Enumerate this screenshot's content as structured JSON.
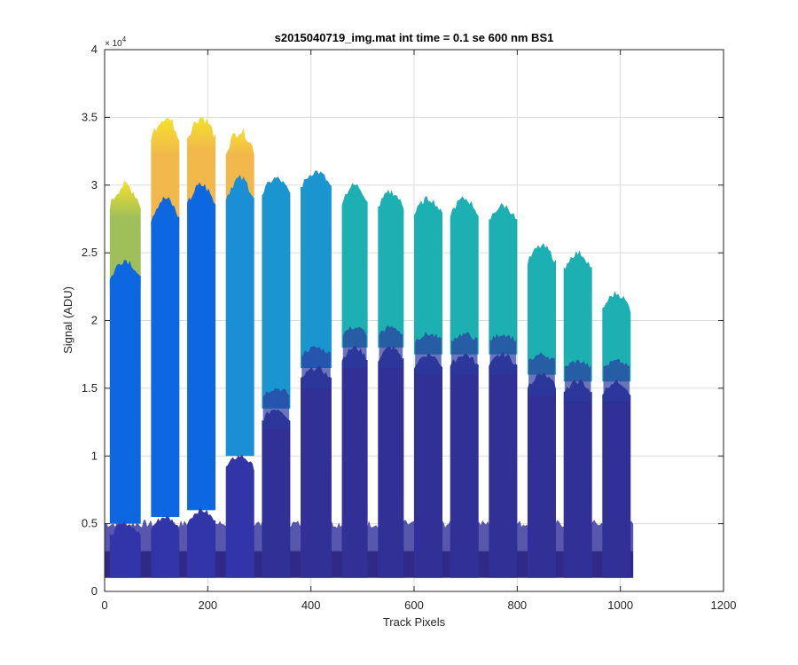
{
  "chart_data": {
    "type": "area",
    "title": "s2015040719_img.mat int time = 0.1 se  600 nm BS1",
    "xlabel": "Track Pixels",
    "ylabel": "Signal (ADU)",
    "xlim": [
      0,
      1200
    ],
    "ylim": [
      0,
      40000
    ],
    "x_ticks": [
      0,
      200,
      400,
      600,
      800,
      1000,
      1200
    ],
    "x_tick_labels": [
      "0",
      "200",
      "400",
      "600",
      "800",
      "1000",
      "1200"
    ],
    "y_ticks": [
      0,
      5000,
      10000,
      15000,
      20000,
      25000,
      30000,
      35000,
      40000
    ],
    "y_tick_labels": [
      "0",
      "0.5",
      "1",
      "1.5",
      "2",
      "2.5",
      "3",
      "3.5",
      "4"
    ],
    "y_exponent_label": "× 10",
    "y_exponent_power": "4",
    "grid": true,
    "baseline": 1000,
    "tracks": [
      {
        "x_start": 10,
        "x_end": 70,
        "top": 30000,
        "blue": 24500,
        "dark": 5000,
        "top_color": "#9fbf5a"
      },
      {
        "x_start": 90,
        "x_end": 145,
        "top": 35000,
        "blue": 29000,
        "dark": 5500,
        "top_color": "#f2b84b"
      },
      {
        "x_start": 160,
        "x_end": 215,
        "top": 35000,
        "blue": 30000,
        "dark": 6000,
        "top_color": "#f2b84b"
      },
      {
        "x_start": 235,
        "x_end": 290,
        "top": 34000,
        "blue": 30500,
        "dark": 10000,
        "top_color": "#f2b84b"
      },
      {
        "x_start": 305,
        "x_end": 360,
        "top": 30500,
        "blue": 30500,
        "dark": 13500,
        "top_color": "#1ea4c8"
      },
      {
        "x_start": 380,
        "x_end": 440,
        "top": 31000,
        "blue": 31000,
        "dark": 16500,
        "top_color": "#18aebb"
      },
      {
        "x_start": 460,
        "x_end": 510,
        "top": 30000,
        "blue": 30000,
        "dark": 18000,
        "top_color": "#1cb0b2"
      },
      {
        "x_start": 530,
        "x_end": 580,
        "top": 29500,
        "blue": 29500,
        "dark": 18000,
        "top_color": "#1cb0b2"
      },
      {
        "x_start": 600,
        "x_end": 655,
        "top": 29000,
        "blue": 29000,
        "dark": 17500,
        "top_color": "#1cb0b2"
      },
      {
        "x_start": 670,
        "x_end": 725,
        "top": 29000,
        "blue": 29000,
        "dark": 17500,
        "top_color": "#1cb0b2"
      },
      {
        "x_start": 745,
        "x_end": 800,
        "top": 28500,
        "blue": 28500,
        "dark": 17500,
        "top_color": "#1cb0b2"
      },
      {
        "x_start": 820,
        "x_end": 875,
        "top": 25500,
        "blue": 25500,
        "dark": 16000,
        "top_color": "#1cb0b2"
      },
      {
        "x_start": 890,
        "x_end": 945,
        "top": 25000,
        "blue": 25000,
        "dark": 15500,
        "top_color": "#1cb0b2"
      },
      {
        "x_start": 965,
        "x_end": 1020,
        "top": 22000,
        "blue": 22000,
        "dark": 15500,
        "top_color": "#1cb0b2"
      }
    ],
    "floor_band": {
      "x_start": 0,
      "x_end": 1025,
      "level": 3000,
      "gap_level": 5000
    },
    "colors": {
      "dark_navy": "#2f2a86",
      "mid_blue": "#2a44c6",
      "bright_blue": "#0c67e0",
      "cyan_blue": "#1a8fd6",
      "teal": "#1cb0b2",
      "orange": "#f2b84b",
      "yellow": "#f5e12a",
      "grid": "#dcdcdc",
      "axis": "#262626"
    }
  }
}
